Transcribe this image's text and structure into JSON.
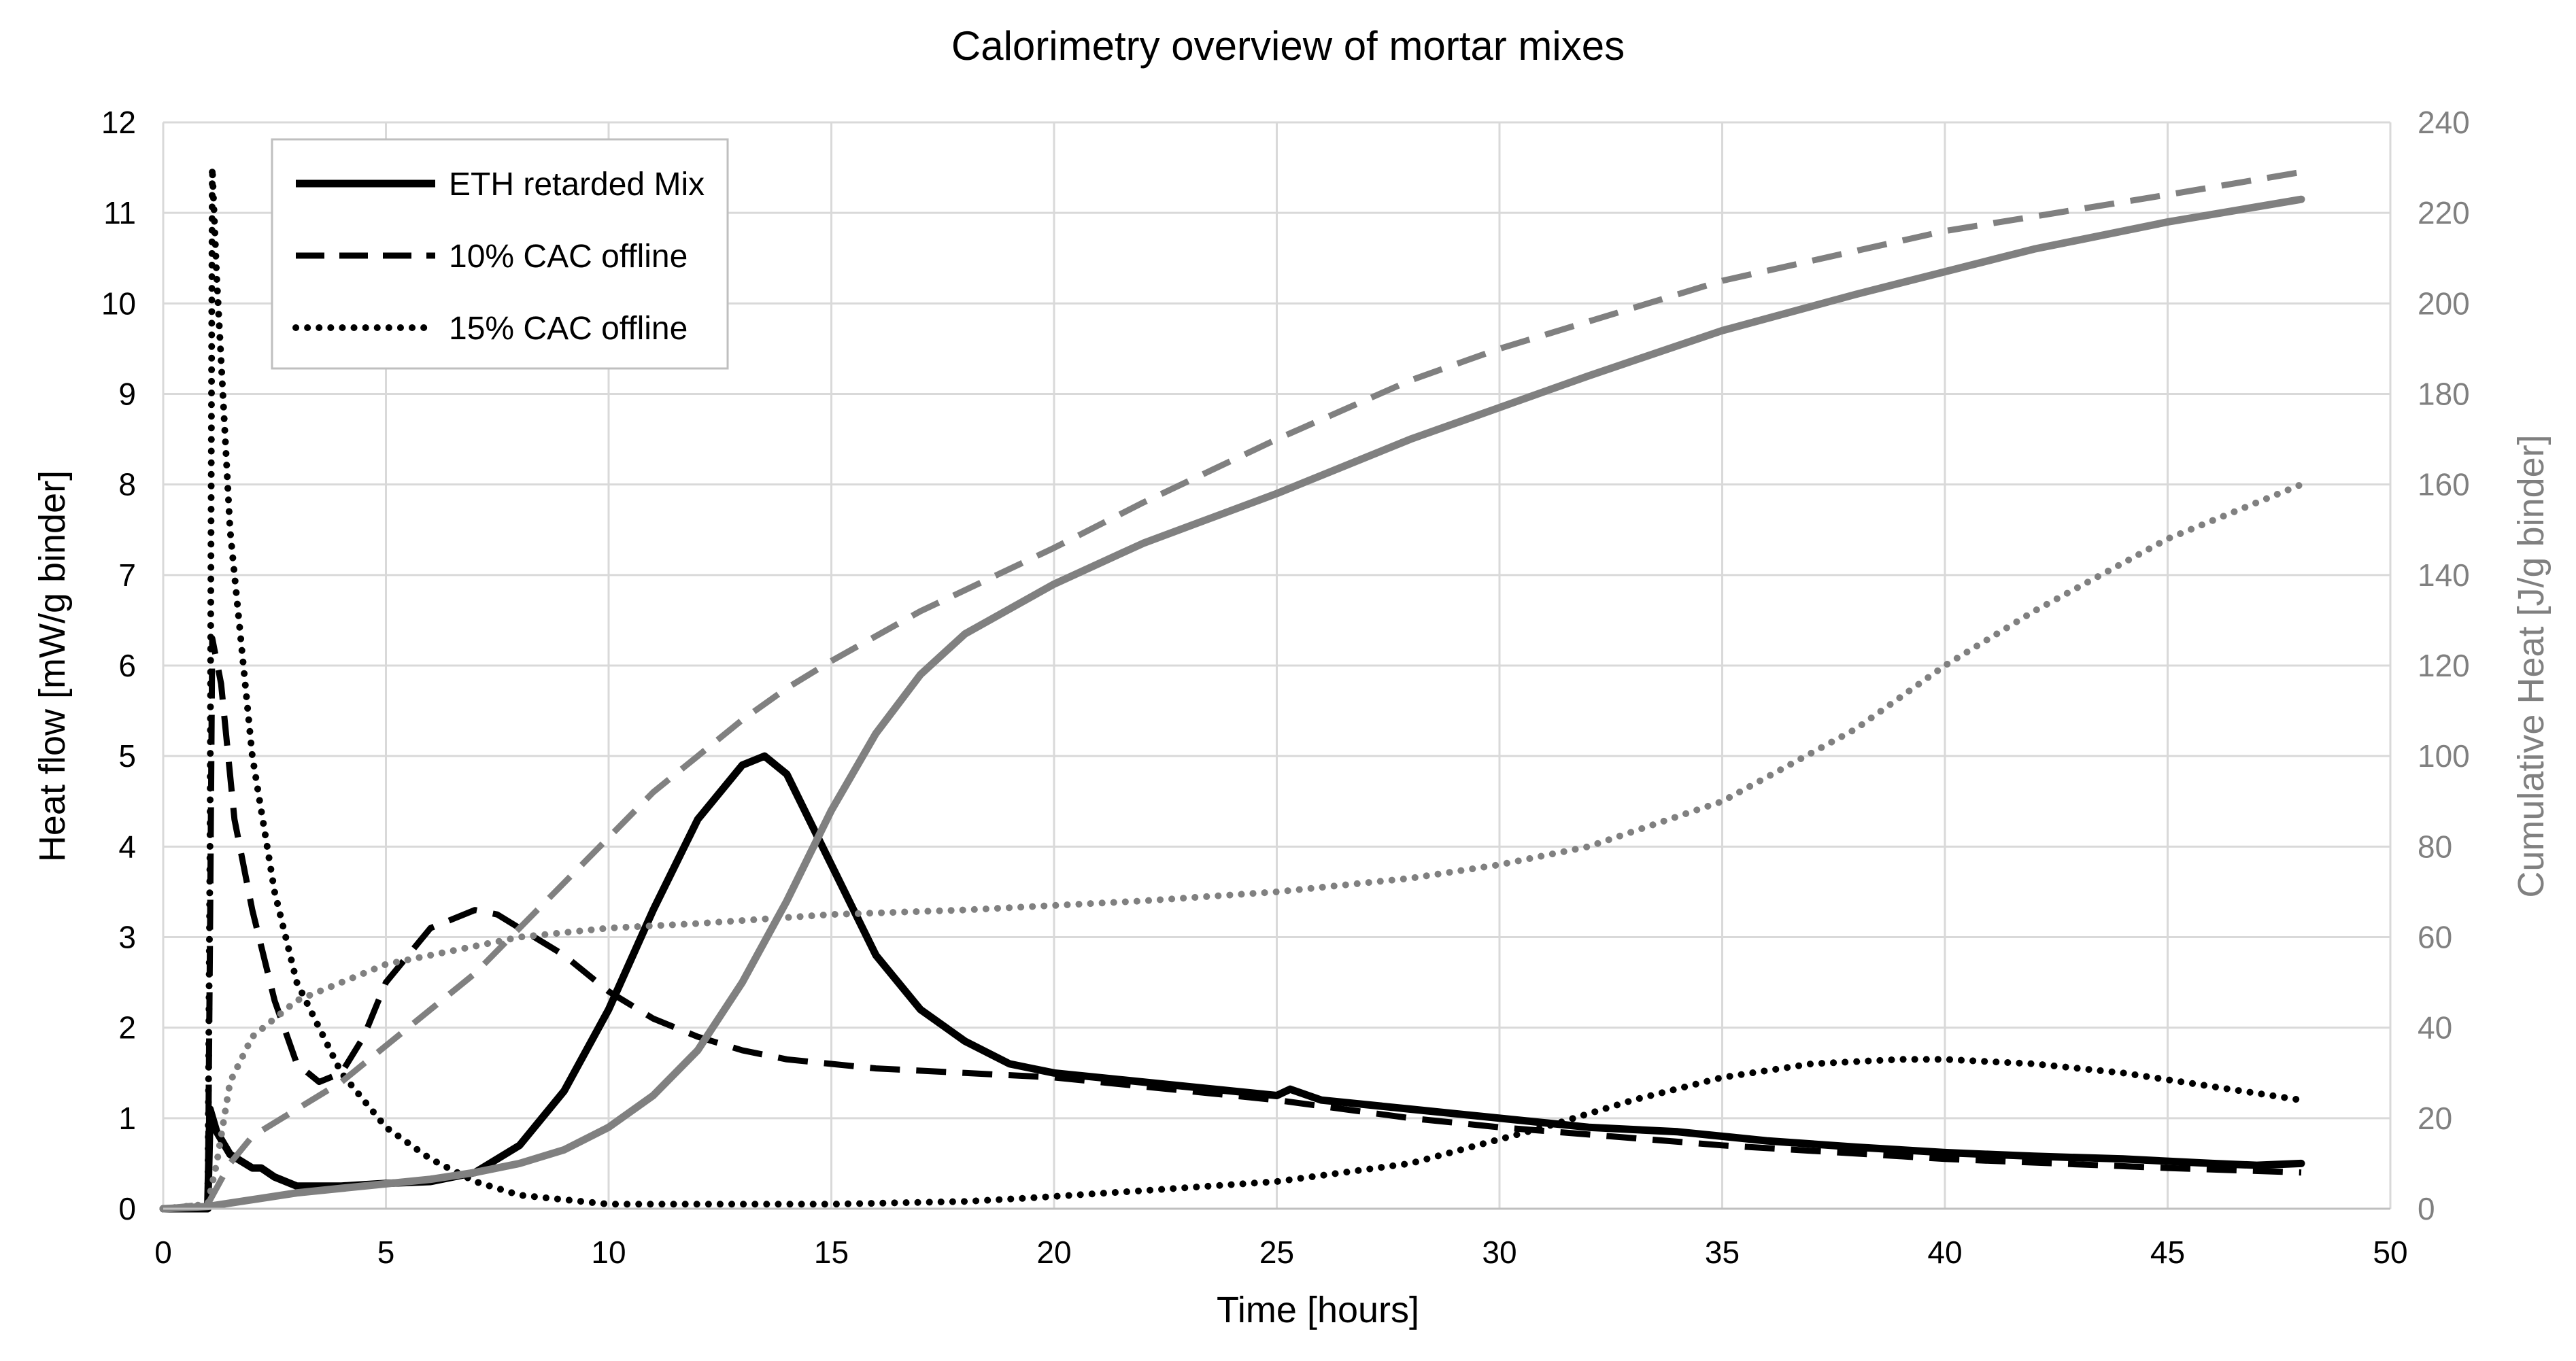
{
  "chart_data": {
    "type": "line",
    "title": "Calorimetry overview of mortar mixes",
    "xlabel": "Time [hours]",
    "ylabel": "Heat flow [mW/g binder]",
    "y2label": "Cumulative Heat [J/g binder]",
    "xlim": [
      0,
      50
    ],
    "ylim": [
      0,
      12
    ],
    "y2lim": [
      0,
      240
    ],
    "x_ticks": [
      "0",
      "5",
      "10",
      "15",
      "20",
      "25",
      "30",
      "35",
      "40",
      "45",
      "50"
    ],
    "y_ticks": [
      "0",
      "1",
      "2",
      "3",
      "4",
      "5",
      "6",
      "7",
      "8",
      "9",
      "10",
      "11",
      "12"
    ],
    "y2_ticks": [
      "0",
      "20",
      "40",
      "60",
      "80",
      "100",
      "120",
      "140",
      "160",
      "180",
      "200",
      "220",
      "240"
    ],
    "grid": true,
    "legend_position": "top-left",
    "colors": {
      "primary": "#000000",
      "secondary": "#808080",
      "grid": "#d9d9d9"
    },
    "legend": [
      {
        "label": "ETH retarded Mix",
        "style": "solid"
      },
      {
        "label": "10% CAC offline",
        "style": "dashed"
      },
      {
        "label": "15% CAC offline",
        "style": "dotted"
      }
    ],
    "series": [
      {
        "name": "ETH retarded Mix",
        "axis": "left",
        "style": "solid",
        "color": "#000000",
        "x": [
          0,
          0.9,
          1.0,
          1.05,
          1.2,
          1.5,
          2,
          2.2,
          2.5,
          3,
          4,
          5,
          6,
          7,
          8,
          9,
          10,
          11,
          12,
          13,
          13.5,
          14,
          15,
          16,
          17,
          18,
          19,
          20,
          22,
          24,
          25,
          25.3,
          26,
          28,
          30,
          32,
          34,
          36,
          38,
          40,
          42,
          44,
          46,
          47,
          48
        ],
        "values": [
          0,
          0,
          0,
          1.1,
          0.85,
          0.6,
          0.45,
          0.45,
          0.35,
          0.25,
          0.25,
          0.28,
          0.3,
          0.4,
          0.7,
          1.3,
          2.2,
          3.3,
          4.3,
          4.9,
          5.0,
          4.8,
          3.8,
          2.8,
          2.2,
          1.85,
          1.6,
          1.5,
          1.4,
          1.3,
          1.25,
          1.32,
          1.2,
          1.1,
          1.0,
          0.9,
          0.85,
          0.75,
          0.68,
          0.62,
          0.58,
          0.55,
          0.5,
          0.48,
          0.5
        ]
      },
      {
        "name": "10% CAC offline",
        "axis": "left",
        "style": "dashed",
        "color": "#000000",
        "x": [
          0,
          0.9,
          1.0,
          1.05,
          1.1,
          1.3,
          1.6,
          2,
          2.5,
          3,
          3.5,
          4,
          4.5,
          5,
          6,
          7,
          7.5,
          8,
          9,
          10,
          11,
          12,
          13,
          14,
          16,
          18,
          20,
          22,
          25,
          28,
          30,
          35,
          40,
          45,
          48
        ],
        "values": [
          0,
          0,
          0,
          3.0,
          6.3,
          5.8,
          4.3,
          3.3,
          2.3,
          1.6,
          1.4,
          1.5,
          1.9,
          2.5,
          3.1,
          3.3,
          3.25,
          3.1,
          2.8,
          2.4,
          2.1,
          1.9,
          1.75,
          1.65,
          1.55,
          1.5,
          1.45,
          1.35,
          1.2,
          1.0,
          0.9,
          0.7,
          0.55,
          0.45,
          0.4
        ]
      },
      {
        "name": "15% CAC offline",
        "axis": "left",
        "style": "dotted",
        "color": "#000000",
        "x": [
          0,
          0.9,
          1.0,
          1.05,
          1.1,
          1.2,
          1.5,
          2,
          2.5,
          3,
          4,
          5,
          6,
          7,
          8,
          10,
          12,
          15,
          18,
          19.5,
          22,
          25,
          28,
          31,
          33,
          35,
          37,
          39,
          40,
          42,
          44,
          46,
          48
        ],
        "values": [
          0,
          0,
          0,
          4.0,
          11.5,
          10.3,
          7.5,
          5.0,
          3.5,
          2.5,
          1.5,
          0.9,
          0.55,
          0.3,
          0.15,
          0.05,
          0.05,
          0.05,
          0.08,
          0.12,
          0.2,
          0.3,
          0.5,
          0.9,
          1.2,
          1.45,
          1.6,
          1.65,
          1.65,
          1.6,
          1.5,
          1.35,
          1.2
        ]
      },
      {
        "name": "ETH retarded Mix (cumulative)",
        "axis": "right",
        "style": "solid",
        "color": "#808080",
        "x": [
          0,
          1,
          2,
          3,
          4,
          5,
          6,
          7,
          8,
          9,
          10,
          11,
          12,
          13,
          14,
          15,
          16,
          17,
          18,
          20,
          22,
          25,
          28,
          30,
          32,
          35,
          38,
          40,
          42,
          45,
          48
        ],
        "values": [
          0,
          0.5,
          2,
          3.5,
          4.5,
          5.5,
          6.5,
          8,
          10,
          13,
          18,
          25,
          35,
          50,
          68,
          88,
          105,
          118,
          127,
          138,
          147,
          158,
          170,
          177,
          184,
          194,
          202,
          207,
          212,
          218,
          223
        ]
      },
      {
        "name": "10% CAC offline (cumulative)",
        "axis": "right",
        "style": "dashed",
        "color": "#808080",
        "x": [
          0,
          1,
          1.5,
          2,
          3,
          4,
          5,
          6,
          7,
          8,
          9,
          10,
          11,
          12,
          13,
          14,
          15,
          17,
          20,
          22,
          25,
          28,
          30,
          35,
          40,
          45,
          48
        ],
        "values": [
          0,
          1,
          10,
          16,
          22,
          28,
          36,
          44,
          52,
          62,
          72,
          82,
          92,
          100,
          108,
          115,
          121,
          132,
          146,
          156,
          170,
          183,
          190,
          205,
          216,
          224,
          229
        ]
      },
      {
        "name": "15% CAC offline (cumulative)",
        "axis": "right",
        "style": "dotted",
        "color": "#808080",
        "x": [
          0,
          1,
          1.2,
          1.5,
          2,
          3,
          4,
          5,
          6,
          7,
          8,
          10,
          12,
          15,
          18,
          20,
          22,
          25,
          28,
          30,
          32,
          35,
          38,
          40,
          42,
          45,
          48
        ],
        "values": [
          0,
          1,
          10,
          28,
          38,
          46,
          50,
          54,
          56,
          58,
          60,
          62,
          63,
          65,
          66,
          67,
          68,
          70,
          73,
          76,
          80,
          90,
          106,
          120,
          132,
          148,
          160
        ]
      }
    ]
  }
}
